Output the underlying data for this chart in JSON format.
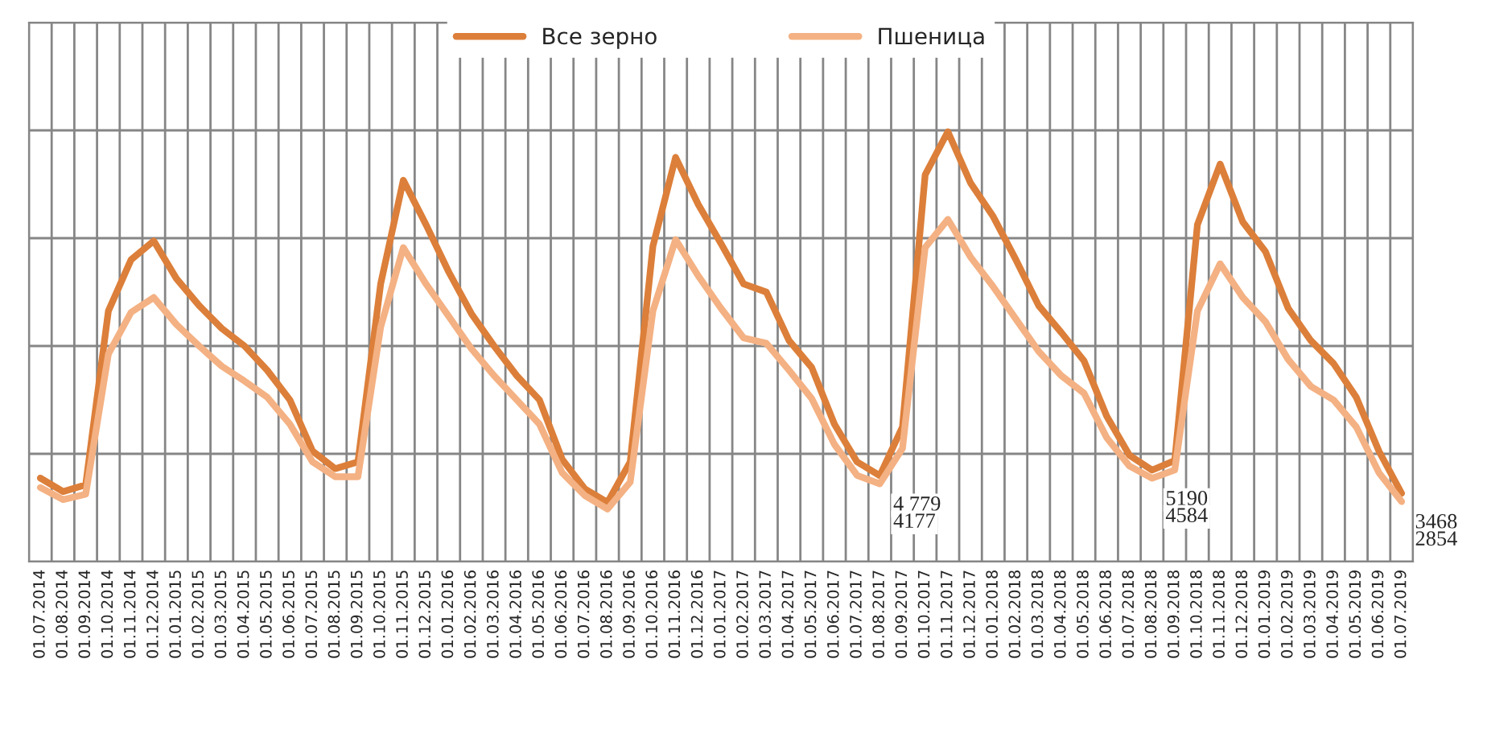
{
  "chart_data": {
    "type": "line",
    "categories": [
      "01.07.2014",
      "01.08.2014",
      "01.09.2014",
      "01.10.2014",
      "01.11.2014",
      "01.12.2014",
      "01.01.2015",
      "01.02.2015",
      "01.03.2015",
      "01.04.2015",
      "01.05.2015",
      "01.06.2015",
      "01.07.2015",
      "01.08.2015",
      "01.09.2015",
      "01.10.2015",
      "01.11.2015",
      "01.12.2015",
      "01.01.2016",
      "01.02.2016",
      "01.03.2016",
      "01.04.2016",
      "01.05.2016",
      "01.06.2016",
      "01.07.2016",
      "01.08.2016",
      "01.09.2016",
      "01.10.2016",
      "01.11.2016",
      "01.12.2016",
      "01.01.2017",
      "01.02.2017",
      "01.03.2017",
      "01.04.2017",
      "01.05.2017",
      "01.06.2017",
      "01.07.2017",
      "01.08.2017",
      "01.09.2017",
      "01.10.2017",
      "01.11.2017",
      "01.12.2017",
      "01.01.2018",
      "01.02.2018",
      "01.03.2018",
      "01.04.2018",
      "01.05.2018",
      "01.06.2018",
      "01.07.2018",
      "01.08.2018",
      "01.09.2018",
      "01.10.2018",
      "01.11.2018",
      "01.12.2018",
      "01.01.2019",
      "01.02.2019",
      "01.03.2019",
      "01.04.2019",
      "01.05.2019",
      "01.06.2019",
      "01.07.2019"
    ],
    "series": [
      {
        "name": "Все зерно",
        "color": "#dc7f3a",
        "values": [
          4600,
          3600,
          4100,
          17000,
          20800,
          22200,
          19400,
          17400,
          15700,
          14400,
          12600,
          10400,
          6600,
          5300,
          5800,
          19000,
          26700,
          23400,
          19900,
          16800,
          14400,
          12200,
          10400,
          6000,
          3800,
          2800,
          5800,
          21800,
          28400,
          24900,
          22000,
          19000,
          18400,
          14800,
          12800,
          8600,
          5800,
          4779,
          8400,
          27100,
          30300,
          26500,
          24000,
          20800,
          17400,
          15400,
          13300,
          9200,
          6300,
          5190,
          5900,
          23400,
          27900,
          23600,
          21400,
          17200,
          14800,
          13100,
          10600,
          6600,
          3468
        ],
        "value_labels": [
          null,
          null,
          null,
          null,
          null,
          null,
          null,
          null,
          null,
          null,
          null,
          null,
          null,
          null,
          null,
          null,
          null,
          null,
          null,
          null,
          null,
          null,
          null,
          null,
          null,
          null,
          null,
          null,
          null,
          null,
          null,
          null,
          null,
          null,
          null,
          null,
          null,
          "4 779",
          null,
          null,
          null,
          null,
          null,
          null,
          null,
          null,
          null,
          null,
          null,
          "5190",
          null,
          null,
          null,
          null,
          null,
          null,
          null,
          null,
          null,
          null,
          "3468"
        ]
      },
      {
        "name": "Пшеница",
        "color": "#f4b183",
        "values": [
          3900,
          3000,
          3400,
          13800,
          16900,
          18000,
          16000,
          14400,
          12900,
          11800,
          10600,
          8600,
          5800,
          4700,
          4700,
          15800,
          21700,
          19000,
          16600,
          14200,
          12200,
          10400,
          8600,
          5000,
          3300,
          2300,
          4300,
          17000,
          22300,
          19600,
          17200,
          15000,
          14600,
          12600,
          10500,
          7100,
          4800,
          4177,
          6800,
          21700,
          23800,
          21000,
          18800,
          16400,
          14000,
          12200,
          10900,
          7600,
          5500,
          4584,
          5200,
          17000,
          20500,
          18000,
          16200,
          13400,
          11400,
          10400,
          8400,
          5000,
          2854
        ],
        "value_labels": [
          null,
          null,
          null,
          null,
          null,
          null,
          null,
          null,
          null,
          null,
          null,
          null,
          null,
          null,
          null,
          null,
          null,
          null,
          null,
          null,
          null,
          null,
          null,
          null,
          null,
          null,
          null,
          null,
          null,
          null,
          null,
          null,
          null,
          null,
          null,
          null,
          null,
          "4177",
          null,
          null,
          null,
          null,
          null,
          null,
          null,
          null,
          null,
          null,
          null,
          "4584",
          null,
          null,
          null,
          null,
          null,
          null,
          null,
          null,
          null,
          null,
          "2854"
        ]
      }
    ],
    "ylim": [
      -1600,
      38400
    ],
    "yticks": [
      {
        "value": -1600,
        "label": null
      },
      {
        "value": 6400,
        "label": null
      },
      {
        "value": 14400,
        "label": null
      },
      {
        "value": 22400,
        "label": null
      },
      {
        "value": 30400,
        "label": null
      },
      {
        "value": 38400,
        "label": null
      }
    ],
    "tick_labels": "x",
    "grid": true,
    "legend": "top",
    "line_style": "solid",
    "marker": "none"
  }
}
